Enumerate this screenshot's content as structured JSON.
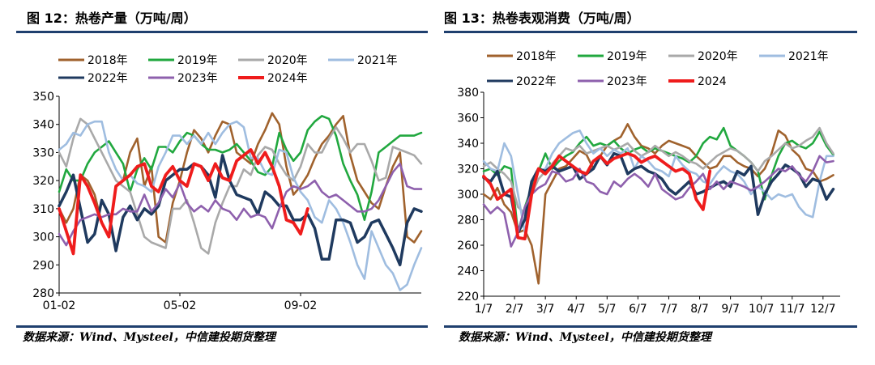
{
  "left": {
    "title": "图 12：热卷产量（万吨/周）",
    "source": "数据来源：Wind、Mysteel，中信建投期货整理"
  },
  "right": {
    "title": "图 13：热卷表观消费（万吨/周）",
    "source": "数据来源：Wind、Mysteel，中信建投期货整理"
  },
  "colors": {
    "2018": "#a0622d",
    "2019": "#21a83f",
    "2020": "#a9a9a9",
    "2021": "#9fbde0",
    "2022": "#1f3a5f",
    "2023": "#8e60ad",
    "2024": "#ef1c1c",
    "rule": "#1f3f6e"
  },
  "chart_data": [
    {
      "type": "line",
      "ylim": [
        280,
        350
      ],
      "yticks": [
        280,
        290,
        300,
        310,
        320,
        330,
        340,
        350
      ],
      "xtick_labels": [
        "01-02",
        "05-02",
        "09-02"
      ],
      "xtick_weeks": [
        0,
        17,
        34
      ],
      "weeks": 52,
      "legend": "top",
      "series": [
        {
          "name": "2018年",
          "key": "2018",
          "values": [
            310,
            305,
            310,
            322,
            320,
            315,
            305,
            300,
            318,
            320,
            330,
            335,
            318,
            325,
            300,
            298,
            312,
            320,
            330,
            338,
            335,
            330,
            336,
            341,
            340,
            330,
            328,
            326,
            333,
            338,
            344,
            340,
            325,
            315,
            318,
            322,
            328,
            333,
            336,
            340,
            343,
            329,
            320,
            316,
            312,
            310,
            318,
            325,
            330,
            300,
            298,
            302
          ]
        },
        {
          "name": "2019年",
          "key": "2019",
          "values": [
            316,
            324,
            320,
            320,
            326,
            330,
            332,
            334,
            330,
            326,
            316,
            324,
            328,
            324,
            332,
            332,
            330,
            334,
            337,
            336,
            333,
            331,
            331,
            330,
            331,
            333,
            330,
            327,
            323,
            322,
            325,
            337,
            331,
            327,
            330,
            338,
            341,
            343,
            342,
            336,
            326,
            320,
            315,
            306,
            316,
            330,
            332,
            334,
            336,
            336,
            336,
            337
          ]
        },
        {
          "name": "2020年",
          "key": "2020",
          "values": [
            330,
            325,
            335,
            342,
            340,
            335,
            330,
            325,
            320,
            318,
            316,
            308,
            300,
            298,
            297,
            296,
            310,
            310,
            313,
            305,
            296,
            294,
            305,
            312,
            318,
            318,
            324,
            322,
            329,
            332,
            331,
            326,
            322,
            320,
            325,
            333,
            330,
            330,
            335,
            339,
            335,
            330,
            333,
            333,
            327,
            320,
            321,
            332,
            331,
            330,
            329,
            326
          ]
        },
        {
          "name": "2021年",
          "key": "2021",
          "values": [
            331,
            333,
            337,
            336,
            340,
            341,
            341,
            330,
            324,
            320,
            322,
            319,
            318,
            316,
            325,
            330,
            336,
            336,
            333,
            336,
            333,
            337,
            333,
            337,
            340,
            341,
            339,
            328,
            328,
            323,
            322,
            331,
            330,
            321,
            316,
            313,
            307,
            305,
            313,
            310,
            305,
            298,
            290,
            285,
            302,
            296,
            290,
            287,
            281,
            283,
            290,
            296
          ]
        },
        {
          "name": "2022年",
          "key": "2022",
          "values": [
            311,
            316,
            322,
            310,
            298,
            301,
            313,
            308,
            295,
            307,
            311,
            306,
            310,
            308,
            311,
            320,
            322,
            324,
            324,
            326,
            325,
            322,
            314,
            329,
            320,
            315,
            314,
            313,
            308,
            316,
            314,
            311,
            311,
            306,
            306,
            308,
            303,
            292,
            292,
            306,
            306,
            305,
            298,
            300,
            305,
            306,
            301,
            296,
            290,
            305,
            310,
            309
          ]
        },
        {
          "name": "2023年",
          "key": "2023",
          "values": [
            301,
            297,
            302,
            306,
            307,
            308,
            307,
            308,
            308,
            310,
            309,
            309,
            315,
            309,
            312,
            317,
            314,
            319,
            312,
            309,
            311,
            309,
            313,
            310,
            309,
            306,
            310,
            307,
            308,
            307,
            303,
            310,
            316,
            318,
            317,
            318,
            320,
            316,
            314,
            315,
            313,
            311,
            309,
            309,
            310,
            313,
            318,
            323,
            326,
            318,
            317,
            317
          ]
        },
        {
          "name": "2024年",
          "key": "2024",
          "values": [
            310,
            302,
            294,
            322,
            318,
            312,
            305,
            300,
            318,
            320,
            322,
            325,
            326,
            318,
            316,
            322,
            325,
            320,
            318,
            326,
            325,
            320,
            326,
            321,
            320,
            327,
            329,
            331,
            326,
            330,
            325,
            318,
            306,
            305,
            301,
            310
          ]
        }
      ]
    },
    {
      "type": "line",
      "ylim": [
        220,
        380
      ],
      "yticks": [
        220,
        240,
        260,
        280,
        300,
        320,
        340,
        360,
        380
      ],
      "xtick_labels": [
        "1/7",
        "2/7",
        "3/7",
        "4/7",
        "5/7",
        "6/7",
        "7/7",
        "8/7",
        "9/7",
        "10/7",
        "11/7",
        "12/7"
      ],
      "xtick_weeks": [
        0,
        4.5,
        9,
        13.5,
        18,
        22.5,
        27,
        31.5,
        36,
        40.5,
        45,
        49.5
      ],
      "weeks": 53,
      "legend": "top",
      "series": [
        {
          "name": "2018年",
          "key": "2018",
          "values": [
            300,
            296,
            305,
            292,
            286,
            270,
            272,
            260,
            230,
            300,
            310,
            320,
            322,
            328,
            334,
            331,
            320,
            330,
            338,
            342,
            345,
            355,
            345,
            338,
            336,
            332,
            338,
            342,
            340,
            338,
            336,
            330,
            325,
            320,
            322,
            330,
            330,
            325,
            322,
            320,
            314,
            320,
            332,
            350,
            346,
            335,
            330,
            320,
            318,
            310,
            312,
            315
          ]
        },
        {
          "name": "2019年",
          "key": "2019",
          "values": [
            318,
            320,
            315,
            322,
            320,
            270,
            290,
            305,
            318,
            332,
            320,
            326,
            330,
            333,
            340,
            345,
            338,
            340,
            338,
            342,
            336,
            332,
            335,
            337,
            333,
            336,
            334,
            332,
            330,
            328,
            325,
            330,
            340,
            345,
            343,
            352,
            338,
            334,
            330,
            325,
            318,
            296,
            315,
            330,
            340,
            342,
            338,
            336,
            340,
            349,
            338,
            331
          ]
        },
        {
          "name": "2020年",
          "key": "2020",
          "values": [
            322,
            325,
            320,
            316,
            310,
            290,
            285,
            300,
            312,
            318,
            324,
            330,
            336,
            334,
            338,
            332,
            334,
            336,
            338,
            335,
            337,
            340,
            334,
            330,
            333,
            338,
            334,
            330,
            333,
            330,
            326,
            324,
            320,
            325,
            330,
            333,
            336,
            334,
            330,
            325,
            318,
            326,
            330,
            335,
            340,
            336,
            338,
            342,
            345,
            352,
            340,
            332
          ]
        },
        {
          "name": "2021年",
          "key": "2021",
          "values": [
            326,
            320,
            318,
            340,
            330,
            300,
            270,
            300,
            318,
            320,
            332,
            340,
            344,
            348,
            350,
            340,
            332,
            336,
            330,
            335,
            332,
            336,
            320,
            330,
            326,
            320,
            318,
            314,
            330,
            323,
            318,
            316,
            310,
            308,
            316,
            322,
            318,
            316,
            310,
            300,
            306,
            302,
            296,
            300,
            298,
            300,
            290,
            284,
            282,
            310,
            330,
            330
          ]
        },
        {
          "name": "2022年",
          "key": "2022",
          "values": [
            313,
            310,
            318,
            300,
            298,
            270,
            280,
            310,
            320,
            318,
            322,
            318,
            320,
            322,
            312,
            316,
            320,
            330,
            323,
            332,
            330,
            316,
            320,
            322,
            318,
            316,
            312,
            304,
            300,
            305,
            310,
            300,
            302,
            305,
            308,
            310,
            306,
            318,
            315,
            322,
            284,
            300,
            310,
            316,
            323,
            320,
            316,
            306,
            312,
            310,
            296,
            304
          ]
        },
        {
          "name": "2023年",
          "key": "2023",
          "values": [
            292,
            285,
            290,
            285,
            259,
            270,
            290,
            300,
            305,
            308,
            318,
            316,
            310,
            312,
            320,
            310,
            308,
            302,
            300,
            310,
            306,
            312,
            316,
            312,
            306,
            316,
            304,
            300,
            296,
            298,
            305,
            310,
            316,
            304,
            310,
            304,
            310,
            308,
            306,
            303,
            306,
            310,
            315,
            320,
            318,
            322,
            315,
            310,
            318,
            330,
            325,
            326
          ]
        },
        {
          "name": "2024",
          "key": "2024",
          "values": [
            314,
            308,
            296,
            300,
            304,
            266,
            265,
            300,
            320,
            316,
            322,
            330,
            326,
            322,
            318,
            316,
            326,
            330,
            324,
            328,
            330,
            332,
            330,
            325,
            328,
            330,
            326,
            322,
            318,
            320,
            316,
            296,
            288,
            318
          ]
        }
      ]
    }
  ]
}
